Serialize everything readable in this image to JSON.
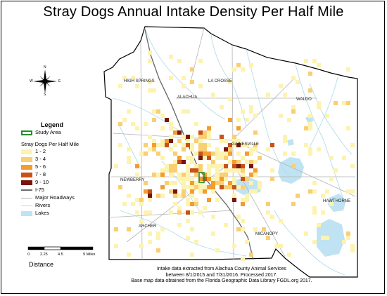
{
  "title": "Stray Dogs Annual Intake Density Per Half Mile",
  "legend": {
    "title": "Legend",
    "study_area": "Study Area",
    "subtitle": "Stray Dogs Per Half Mile",
    "classes": [
      {
        "label": "1 - 2",
        "color": "#fdf3b0"
      },
      {
        "label": "3 - 4",
        "color": "#f9cf74"
      },
      {
        "label": "5 - 6",
        "color": "#f29d2d"
      },
      {
        "label": "7 - 8",
        "color": "#c95118"
      },
      {
        "label": "9 - 10",
        "color": "#7a150b"
      }
    ],
    "lines": [
      {
        "label": "I-75",
        "color": "#6e6e6e",
        "kind": "line-thick"
      },
      {
        "label": "Major Roadways",
        "color": "#b3b3b3",
        "kind": "line"
      },
      {
        "label": "Rivers",
        "color": "#b5dcea",
        "kind": "line"
      },
      {
        "label": "Lakes",
        "color": "#bfe3f2",
        "kind": "fill"
      }
    ]
  },
  "compass": {
    "n": "N",
    "s": "S",
    "w": "W",
    "e": "E"
  },
  "scale": {
    "ticks": [
      "0",
      "2.25",
      "4.5",
      "9 Miles"
    ],
    "caption": "Distance"
  },
  "cities": [
    "HIGH SPRINGS",
    "LA CROSSE",
    "ALACHUA",
    "WALDO",
    "GAINESVILLE",
    "NEWBERRY",
    "HAWTHORNE",
    "ARCHER",
    "MICANOPY"
  ],
  "credits": [
    "Intake data extracted from Alachua County Animal Services",
    "between 8/1/2015 and 7/31/2016. Processed 2017.",
    "Base map data obtained from the Florida Geographic Data Library FGDL.org 2017."
  ],
  "colors": {
    "county_outline": "#000000",
    "river": "#b5dcea",
    "lake": "#bfe3f2",
    "road": "#b3b3b3",
    "interstate": "#6e6e6e",
    "study_area": "#1f8f2a"
  }
}
